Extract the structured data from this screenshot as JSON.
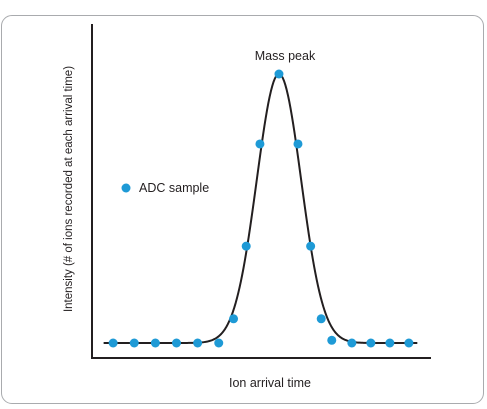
{
  "chart_data": {
    "type": "scatter",
    "title": "",
    "xlabel": "Ion arrival time",
    "ylabel": "Intensity (# of ions recorded at each arrival time)",
    "annotation": "Mass peak",
    "legend": {
      "label": "ADC sample",
      "placement": "middle-left"
    },
    "series": [
      {
        "name": "ADC sample",
        "color": "#1e9ad6",
        "marker": "circle",
        "points": [
          {
            "x": 1,
            "y": 0
          },
          {
            "x": 2,
            "y": 0
          },
          {
            "x": 3,
            "y": 0
          },
          {
            "x": 4,
            "y": 0
          },
          {
            "x": 5,
            "y": 0
          },
          {
            "x": 6,
            "y": 0
          },
          {
            "x": 6.7,
            "y": 9
          },
          {
            "x": 7.3,
            "y": 36
          },
          {
            "x": 7.95,
            "y": 74
          },
          {
            "x": 8.85,
            "y": 100
          },
          {
            "x": 9.75,
            "y": 74
          },
          {
            "x": 10.35,
            "y": 36
          },
          {
            "x": 10.85,
            "y": 9
          },
          {
            "x": 11.35,
            "y": 1
          },
          {
            "x": 12.3,
            "y": 0
          },
          {
            "x": 13.2,
            "y": 0
          },
          {
            "x": 14.1,
            "y": 0
          },
          {
            "x": 15,
            "y": 0
          }
        ]
      }
    ],
    "curve": {
      "color": "#231f20",
      "type": "gaussian",
      "center": 8.85,
      "sigma": 1.05,
      "baseline": 0,
      "amplitude": 100
    },
    "xlim": [
      0,
      16
    ],
    "ylim": [
      -5,
      115
    ],
    "grid": false,
    "ticks": false
  }
}
